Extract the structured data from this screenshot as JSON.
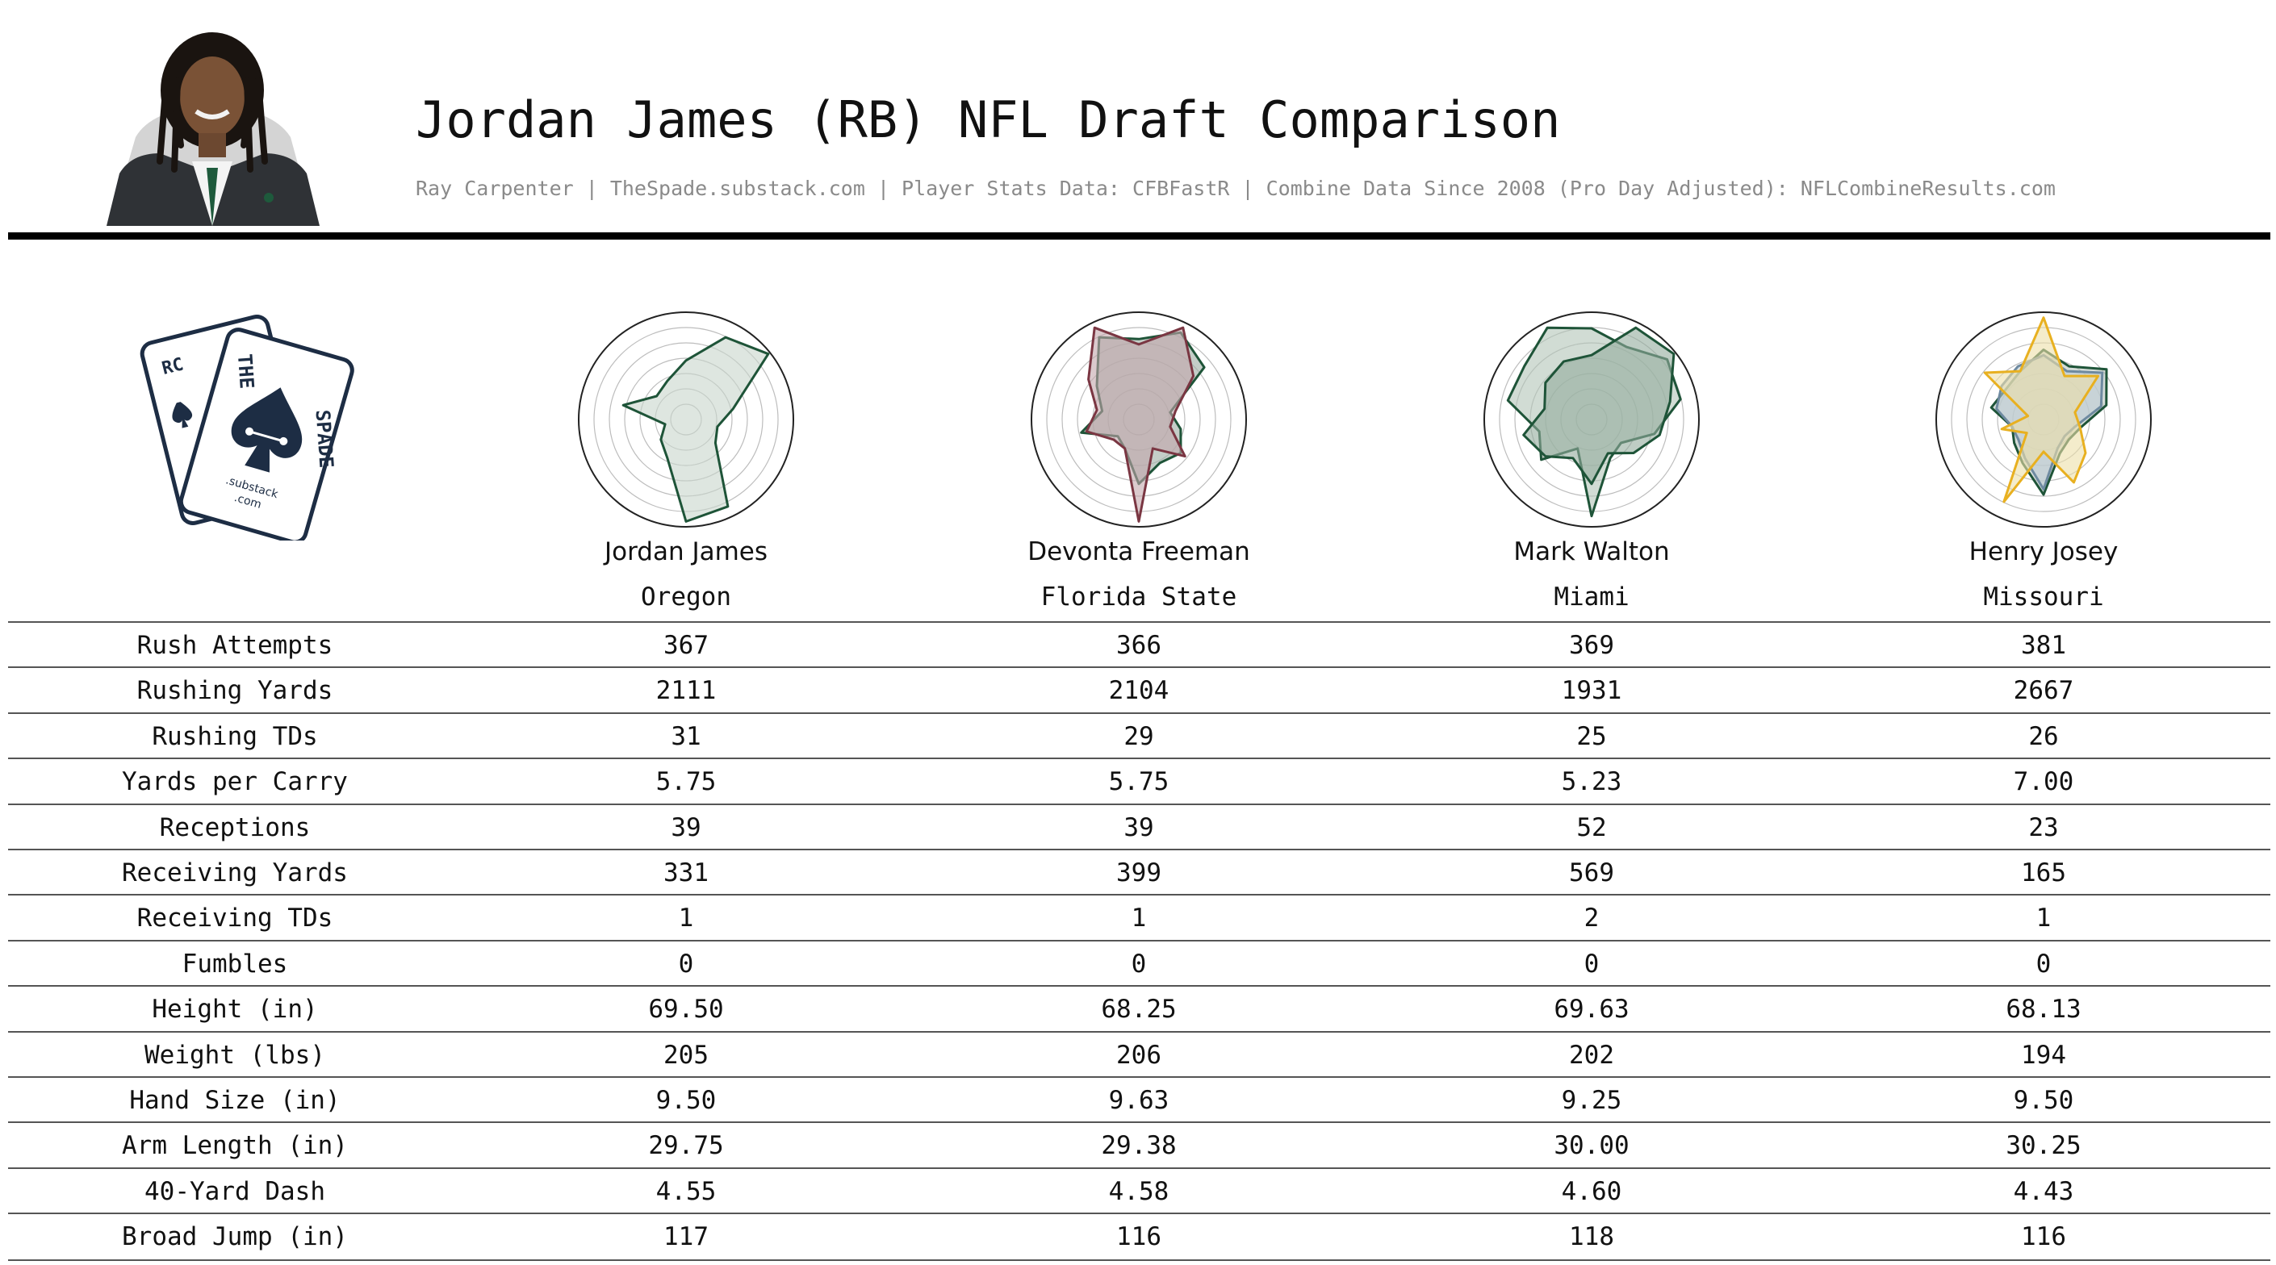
{
  "header": {
    "title": "Jordan James (RB) NFL Draft Comparison",
    "subtitle": "Ray Carpenter | TheSpade.substack.com | Player Stats Data: CFBFastR | Combine Data Since 2008 (Pro Day Adjusted): NFLCombineResults.com"
  },
  "logo": {
    "words": [
      "THE",
      "SPADE"
    ],
    "small_text": [
      ".substack",
      ".com"
    ],
    "back_card_letters": "RC",
    "color": "#1d2d44"
  },
  "colors": {
    "green": "#1e5438",
    "maroon": "#7a3642",
    "gold": "#e8b020",
    "blue_gray": "#6e8aa0",
    "gray_fill": "#c8ccc6"
  },
  "players": [
    {
      "name": "Jordan James",
      "school": "Oregon"
    },
    {
      "name": "Devonta Freeman",
      "school": "Florida State"
    },
    {
      "name": "Mark Walton",
      "school": "Miami"
    },
    {
      "name": "Henry Josey",
      "school": "Missouri"
    }
  ],
  "chart_data": {
    "type": "table",
    "columns": [
      "Jordan James",
      "Devonta Freeman",
      "Mark Walton",
      "Henry Josey"
    ],
    "rows": [
      {
        "label": "Rush Attempts",
        "values": [
          "367",
          "366",
          "369",
          "381"
        ]
      },
      {
        "label": "Rushing Yards",
        "values": [
          "2111",
          "2104",
          "1931",
          "2667"
        ]
      },
      {
        "label": "Rushing TDs",
        "values": [
          "31",
          "29",
          "25",
          "26"
        ]
      },
      {
        "label": "Yards per Carry",
        "values": [
          "5.75",
          "5.75",
          "5.23",
          "7.00"
        ]
      },
      {
        "label": "Receptions",
        "values": [
          "39",
          "39",
          "52",
          "23"
        ]
      },
      {
        "label": "Receiving Yards",
        "values": [
          "331",
          "399",
          "569",
          "165"
        ]
      },
      {
        "label": "Receiving TDs",
        "values": [
          "1",
          "1",
          "2",
          "1"
        ]
      },
      {
        "label": "Fumbles",
        "values": [
          "0",
          "0",
          "0",
          "0"
        ]
      },
      {
        "label": "Height (in)",
        "values": [
          "69.50",
          "68.25",
          "69.63",
          "68.13"
        ]
      },
      {
        "label": "Weight (lbs)",
        "values": [
          "205",
          "206",
          "202",
          "194"
        ]
      },
      {
        "label": "Hand Size (in)",
        "values": [
          "9.50",
          "9.63",
          "9.25",
          "9.50"
        ]
      },
      {
        "label": "Arm Length (in)",
        "values": [
          "29.75",
          "29.38",
          "30.00",
          "30.25"
        ]
      },
      {
        "label": "40-Yard Dash",
        "values": [
          "4.55",
          "4.58",
          "4.60",
          "4.43"
        ]
      },
      {
        "label": "Broad Jump (in)",
        "values": [
          "117",
          "116",
          "118",
          "116"
        ]
      }
    ],
    "radars": [
      {
        "player": "Jordan James",
        "axis_count": 14,
        "rmax": 1,
        "series": [
          {
            "color": "#1e5438",
            "fill": "#c8d6cc",
            "values": [
              0.55,
              0.85,
              0.98,
              0.45,
              0.3,
              0.35,
              0.9,
              0.95,
              0.4,
              0.3,
              0.2,
              0.6,
              0.35,
              0.4
            ]
          }
        ]
      },
      {
        "player": "Devonta Freeman",
        "axis_count": 14,
        "rmax": 1,
        "series": [
          {
            "color": "#1e5438",
            "fill": "#9caea4",
            "values": [
              0.75,
              0.9,
              0.78,
              0.3,
              0.4,
              0.5,
              0.45,
              0.6,
              0.3,
              0.25,
              0.55,
              0.35,
              0.5,
              0.85
            ]
          },
          {
            "color": "#7a3642",
            "fill": "#c3a6ab",
            "values": [
              0.7,
              0.95,
              0.65,
              0.35,
              0.3,
              0.55,
              0.3,
              0.95,
              0.3,
              0.3,
              0.5,
              0.4,
              0.6,
              0.95
            ]
          }
        ]
      },
      {
        "player": "Mark Walton",
        "axis_count": 14,
        "rmax": 1,
        "series": [
          {
            "color": "#1e5438",
            "fill": "#b2c4b8",
            "values": [
              0.85,
              0.75,
              0.9,
              0.85,
              0.6,
              0.35,
              0.4,
              0.9,
              0.3,
              0.6,
              0.5,
              0.8,
              0.8,
              0.95
            ]
          },
          {
            "color": "#1e5438",
            "fill": "#92ab9c",
            "values": [
              0.6,
              0.95,
              0.98,
              0.75,
              0.65,
              0.5,
              0.35,
              0.6,
              0.4,
              0.55,
              0.65,
              0.45,
              0.55,
              0.6
            ]
          }
        ]
      },
      {
        "player": "Henry Josey",
        "axis_count": 14,
        "rmax": 1,
        "series": [
          {
            "color": "#1e5438",
            "fill": "#b9c6bf",
            "values": [
              0.65,
              0.55,
              0.75,
              0.6,
              0.35,
              0.3,
              0.35,
              0.7,
              0.45,
              0.35,
              0.3,
              0.5,
              0.45,
              0.5
            ]
          },
          {
            "color": "#6e8aa0",
            "fill": "#bfcdd6",
            "values": [
              0.6,
              0.5,
              0.7,
              0.55,
              0.3,
              0.25,
              0.3,
              0.65,
              0.4,
              0.3,
              0.3,
              0.45,
              0.5,
              0.55
            ]
          },
          {
            "color": "#e8b020",
            "fill": "#ecdfa8",
            "values": [
              0.95,
              0.45,
              0.65,
              0.3,
              0.35,
              0.5,
              0.65,
              0.3,
              0.85,
              0.2,
              0.4,
              0.15,
              0.7,
              0.5
            ]
          }
        ]
      }
    ]
  }
}
